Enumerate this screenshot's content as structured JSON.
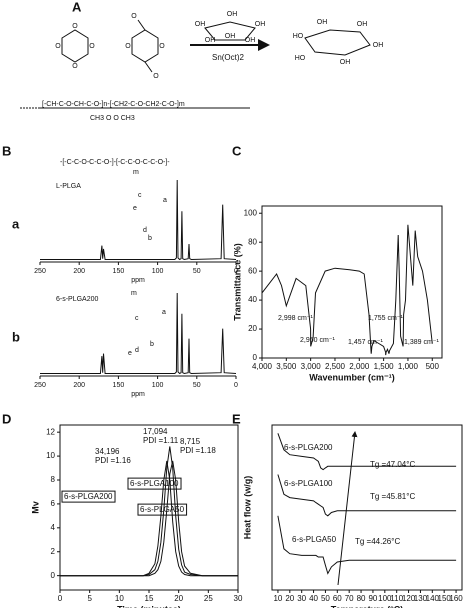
{
  "panel_labels": [
    "A",
    "B",
    "C",
    "D",
    "E"
  ],
  "scheme": {
    "reagent": "Sn(Oct)2",
    "labels": [
      "O",
      "O",
      "O",
      "O",
      "O",
      "O",
      "O",
      "O",
      "OH",
      "OH",
      "OH",
      "OH",
      "OH",
      "OH",
      "HO",
      "OH",
      "OH",
      "OH",
      "HO",
      "OH"
    ],
    "polymer": "[-CH-C-O-CH-C-O-]n-[-CH2-C-O-CH2-C-O-]m",
    "polymer_sub": "CH3   O        O  CH3"
  },
  "chart_data": [
    {
      "type": "spectrum",
      "title": "L-PLGA",
      "tag": "a",
      "structure": "-[-C-C-O-C-C-O-]-[-C-C-O-C-C-O-]-",
      "x": [
        250,
        200,
        173,
        171,
        170,
        169,
        167,
        120,
        78,
        76,
        75,
        74,
        72,
        70,
        69,
        68,
        66,
        61,
        60,
        59,
        57,
        19,
        17,
        15,
        0
      ],
      "values": [
        3,
        3,
        3,
        20,
        4,
        16,
        3,
        3,
        3,
        5,
        100,
        5,
        3,
        4,
        62,
        4,
        3,
        4,
        22,
        4,
        3,
        4,
        70,
        4,
        3
      ],
      "peak_labels": [
        "e",
        "d",
        "m",
        "c",
        "b",
        "a"
      ],
      "xlim": [
        250,
        0
      ],
      "ylim": [
        0,
        100
      ],
      "xticks": [
        250,
        200,
        150,
        100,
        50,
        0
      ],
      "xlabel": "ppm",
      "color": "#111111"
    },
    {
      "type": "spectrum",
      "title": "6-s-PLGA200",
      "tag": "b",
      "x": [
        250,
        200,
        173,
        171,
        170,
        169,
        167,
        120,
        78,
        76,
        75,
        74,
        72,
        70,
        69,
        68,
        66,
        61,
        60,
        59,
        57,
        19,
        17,
        15,
        0
      ],
      "values": [
        3,
        3,
        3,
        24,
        4,
        27,
        3,
        3,
        3,
        5,
        100,
        5,
        3,
        4,
        75,
        4,
        3,
        4,
        45,
        4,
        3,
        4,
        57,
        4,
        3
      ],
      "peak_labels": [
        "e",
        "d",
        "m",
        "c",
        "b",
        "a"
      ],
      "xlim": [
        250,
        0
      ],
      "ylim": [
        0,
        100
      ],
      "xticks": [
        250,
        200,
        150,
        100,
        50,
        0
      ],
      "xlabel": "ppm",
      "color": "#111111"
    },
    {
      "type": "line",
      "xlabel": "Wavenumber (cm⁻¹)",
      "ylabel": "Transmittance (%)",
      "x": [
        4000,
        3700,
        3600,
        3500,
        3300,
        3100,
        3000,
        2998,
        2950,
        2900,
        2700,
        2500,
        2200,
        2000,
        1900,
        1800,
        1760,
        1755,
        1740,
        1700,
        1600,
        1500,
        1460,
        1457,
        1450,
        1420,
        1389,
        1380,
        1300,
        1250,
        1200,
        1180,
        1150,
        1100,
        1090,
        1050,
        1000,
        900,
        850,
        800,
        700,
        600,
        500
      ],
      "series": [
        {
          "color": "#111111",
          "values": [
            45,
            58,
            50,
            36,
            55,
            50,
            20,
            8,
            14,
            45,
            60,
            62,
            61,
            60,
            58,
            30,
            5,
            3,
            8,
            12,
            10,
            8,
            4,
            2,
            4,
            6,
            3,
            5,
            10,
            40,
            85,
            60,
            15,
            8,
            30,
            40,
            92,
            50,
            88,
            70,
            60,
            40,
            10
          ]
        }
      ],
      "annotations": [
        "2,998 cm⁻¹",
        "2,950 cm⁻¹",
        "1,755 cm⁻¹",
        "1,457 cm⁻¹",
        "1,389 cm⁻¹"
      ],
      "xlim": [
        4000,
        300
      ],
      "ylim": [
        0,
        105
      ],
      "xticks": [
        {
          "value": 4000,
          "label": "4,000"
        },
        {
          "value": 3500,
          "label": "3,500"
        },
        {
          "value": 3000,
          "label": "3,000"
        },
        {
          "value": 2500,
          "label": "2,500"
        },
        {
          "value": 2000,
          "label": "2,000"
        },
        {
          "value": 1500,
          "label": "1,500"
        },
        {
          "value": 1000,
          "label": "1,000"
        },
        500
      ],
      "yticks": [
        0,
        20,
        40,
        60,
        80,
        100
      ]
    },
    {
      "type": "line",
      "xlabel": "Time (minutes)",
      "ylabel": "Mv",
      "x": [
        0,
        14,
        15,
        16,
        16.5,
        17,
        17.5,
        18,
        18.5,
        19,
        19.5,
        20,
        20.5,
        21,
        22,
        24,
        30
      ],
      "series": [
        {
          "name": "6-s-PLGA200",
          "color": "#111111",
          "values": [
            0,
            0,
            0.2,
            1,
            2.5,
            5,
            8,
            9.6,
            8,
            4.5,
            2,
            0.8,
            0.3,
            0.1,
            0,
            0,
            0
          ]
        },
        {
          "name": "6-s-PLGA100",
          "color": "#111111",
          "values": [
            0,
            0,
            0.1,
            0.5,
            1.2,
            2.8,
            5.5,
            9,
            10.8,
            9,
            5,
            2.2,
            0.9,
            0.3,
            0.1,
            0,
            0
          ]
        },
        {
          "name": "6-s-PLGA50",
          "color": "#111111",
          "values": [
            0,
            0,
            0,
            0.2,
            0.5,
            1.2,
            2.8,
            5.5,
            8.5,
            9.6,
            8,
            4.5,
            2,
            0.8,
            0.2,
            0,
            0
          ]
        }
      ],
      "annotations": [
        "17,094",
        "PDI =1.11",
        "34,196",
        "PDI =1.16",
        "8,715",
        "PDI =1.18"
      ],
      "xlim": [
        0,
        30
      ],
      "ylim": [
        -1.2,
        12.6
      ],
      "xticks": [
        0,
        5,
        10,
        15,
        20,
        25,
        30
      ],
      "yticks": [
        0,
        2,
        4,
        6,
        8,
        10,
        12
      ]
    },
    {
      "type": "line",
      "xlabel": "Temperature (°C)",
      "ylabel": "Heat flow (w/g)",
      "x": [
        10,
        15,
        20,
        30,
        40,
        42,
        44,
        46,
        48,
        50,
        52,
        55,
        60,
        70,
        80,
        100,
        120,
        140,
        160
      ],
      "series": [
        {
          "name": "6-s-PLGA200",
          "color": "#111111",
          "values": [
            95,
            85,
            82,
            81,
            80,
            79,
            78,
            74,
            73,
            74,
            75,
            75,
            75,
            75,
            75,
            75,
            75,
            75,
            75
          ]
        },
        {
          "name": "6-s-PLGA100",
          "color": "#111111",
          "values": [
            70,
            58,
            56,
            55,
            54,
            53,
            52,
            51,
            50,
            46,
            45,
            47,
            48,
            48,
            48,
            48,
            48,
            48,
            48
          ]
        },
        {
          "name": "6-s-PLGA50",
          "color": "#111111",
          "values": [
            45,
            25,
            22,
            21,
            21,
            21,
            20,
            20,
            20,
            15,
            10,
            14,
            17,
            18,
            18,
            18,
            18,
            18,
            18
          ]
        }
      ],
      "annotations": [
        "Tg =47.04°C",
        "Tg =45.81°C",
        "Tg =44.26°C"
      ],
      "xlim": [
        5,
        165
      ],
      "ylim": [
        0,
        100
      ],
      "xticks": [
        10,
        20,
        30,
        40,
        50,
        60,
        70,
        80,
        90,
        100,
        110,
        120,
        130,
        140,
        150,
        160
      ]
    }
  ]
}
